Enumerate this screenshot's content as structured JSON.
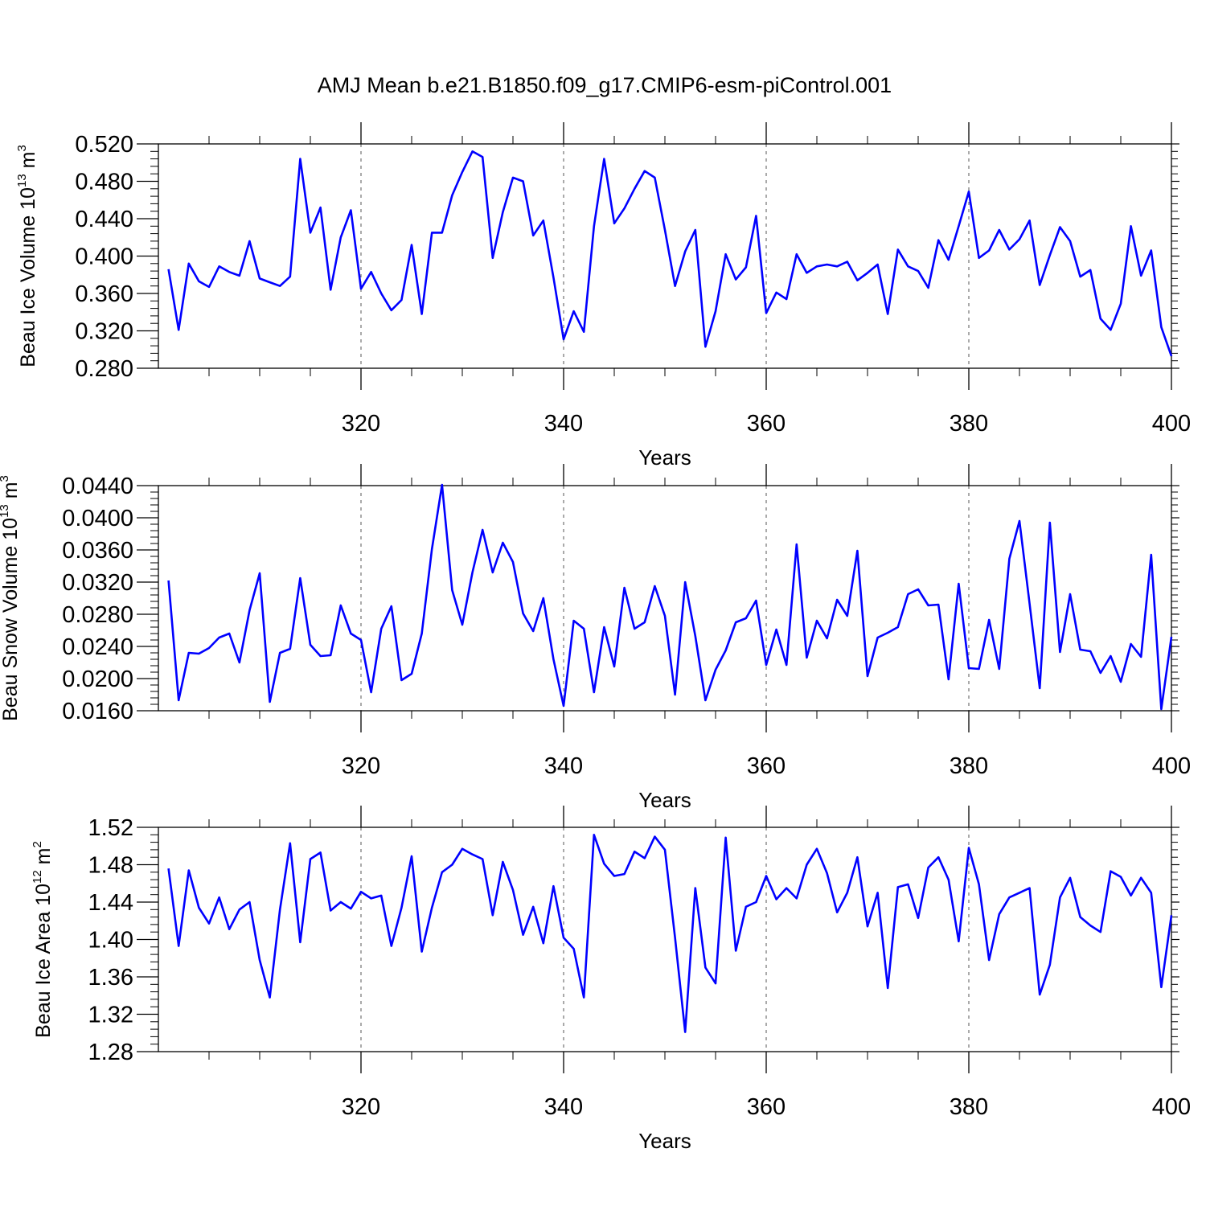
{
  "title": "AMJ Mean b.e21.B1850.f09_g17.CMIP6-esm-piControl.001",
  "colors": {
    "line": "#0000ff",
    "axis": "#000000",
    "grid": "#555555"
  },
  "chart_data": [
    {
      "type": "line",
      "name": "ice-volume",
      "ylabel": {
        "text": "Beau Ice Volume 10",
        "exponent": "13",
        "unit": " m",
        "unit_exponent": "3"
      },
      "xlabel": "Years",
      "xlim": [
        300,
        400
      ],
      "ylim": [
        0.28,
        0.52
      ],
      "yticks": [
        "0.280",
        "0.320",
        "0.360",
        "0.400",
        "0.440",
        "0.480",
        "0.520"
      ],
      "xticks": [
        "320",
        "340",
        "360",
        "380",
        "400"
      ],
      "x_start": 300,
      "x_step": 1,
      "values": [
        0.386,
        0.321,
        0.392,
        0.373,
        0.367,
        0.389,
        0.383,
        0.379,
        0.416,
        0.376,
        0.372,
        0.368,
        0.378,
        0.504,
        0.425,
        0.452,
        0.364,
        0.42,
        0.449,
        0.365,
        0.383,
        0.36,
        0.342,
        0.353,
        0.412,
        0.338,
        0.425,
        0.425,
        0.465,
        0.49,
        0.512,
        0.506,
        0.398,
        0.447,
        0.484,
        0.48,
        0.422,
        0.438,
        0.377,
        0.311,
        0.341,
        0.319,
        0.432,
        0.504,
        0.435,
        0.451,
        0.472,
        0.491,
        0.484,
        0.428,
        0.368,
        0.405,
        0.428,
        0.303,
        0.341,
        0.402,
        0.375,
        0.388,
        0.443,
        0.339,
        0.361,
        0.354,
        0.402,
        0.382,
        0.389,
        0.391,
        0.389,
        0.394,
        0.374,
        0.382,
        0.391,
        0.338,
        0.407,
        0.389,
        0.384,
        0.366,
        0.417,
        0.396,
        0.432,
        0.469,
        0.398,
        0.406,
        0.428,
        0.407,
        0.418,
        0.438,
        0.369,
        0.401,
        0.431,
        0.416,
        0.378,
        0.385,
        0.333,
        0.321,
        0.349,
        0.432,
        0.379,
        0.406,
        0.324,
        0.293
      ]
    },
    {
      "type": "line",
      "name": "snow-volume",
      "ylabel": {
        "text": "Beau Snow Volume 10",
        "exponent": "13",
        "unit": " m",
        "unit_exponent": "3"
      },
      "xlabel": "Years",
      "xlim": [
        300,
        400
      ],
      "ylim": [
        0.016,
        0.044
      ],
      "yticks": [
        "0.0160",
        "0.0200",
        "0.0240",
        "0.0280",
        "0.0320",
        "0.0360",
        "0.0400",
        "0.0440"
      ],
      "xticks": [
        "320",
        "340",
        "360",
        "380",
        "400"
      ],
      "x_start": 300,
      "x_step": 1,
      "values": [
        0.0322,
        0.0173,
        0.0232,
        0.0231,
        0.0238,
        0.0251,
        0.0256,
        0.022,
        0.0285,
        0.0331,
        0.0171,
        0.0232,
        0.0237,
        0.0325,
        0.0242,
        0.0228,
        0.0229,
        0.0291,
        0.0256,
        0.0248,
        0.0183,
        0.0262,
        0.029,
        0.0198,
        0.0206,
        0.0256,
        0.0361,
        0.0441,
        0.031,
        0.0267,
        0.0332,
        0.0385,
        0.0332,
        0.0369,
        0.0345,
        0.0281,
        0.0259,
        0.03,
        0.0224,
        0.0166,
        0.0272,
        0.0262,
        0.0183,
        0.0264,
        0.0215,
        0.0313,
        0.0262,
        0.027,
        0.0315,
        0.0278,
        0.018,
        0.032,
        0.0253,
        0.0173,
        0.0211,
        0.0235,
        0.027,
        0.0275,
        0.0297,
        0.0217,
        0.0261,
        0.0217,
        0.0367,
        0.0226,
        0.0272,
        0.025,
        0.0298,
        0.0278,
        0.0359,
        0.0203,
        0.0251,
        0.0257,
        0.0264,
        0.0305,
        0.0311,
        0.0291,
        0.0292,
        0.0199,
        0.0318,
        0.0213,
        0.0212,
        0.0273,
        0.0212,
        0.0349,
        0.0396,
        0.0293,
        0.0188,
        0.0394,
        0.0233,
        0.0305,
        0.0236,
        0.0234,
        0.0207,
        0.0228,
        0.0196,
        0.0243,
        0.0227,
        0.0354,
        0.0162,
        0.0252
      ]
    },
    {
      "type": "line",
      "name": "ice-area",
      "ylabel": {
        "text": "Beau Ice Area 10",
        "exponent": "12",
        "unit": " m",
        "unit_exponent": "2"
      },
      "xlabel": "Years",
      "xlim": [
        300,
        400
      ],
      "ylim": [
        1.28,
        1.52
      ],
      "yticks": [
        "1.28",
        "1.32",
        "1.36",
        "1.40",
        "1.44",
        "1.48",
        "1.52"
      ],
      "xticks": [
        "320",
        "340",
        "360",
        "380",
        "400"
      ],
      "x_start": 300,
      "x_step": 1,
      "values": [
        1.476,
        1.393,
        1.474,
        1.434,
        1.417,
        1.445,
        1.411,
        1.432,
        1.44,
        1.378,
        1.338,
        1.432,
        1.503,
        1.397,
        1.486,
        1.493,
        1.431,
        1.44,
        1.433,
        1.451,
        1.444,
        1.447,
        1.393,
        1.434,
        1.489,
        1.387,
        1.434,
        1.472,
        1.48,
        1.497,
        1.491,
        1.486,
        1.426,
        1.483,
        1.453,
        1.405,
        1.435,
        1.396,
        1.457,
        1.402,
        1.39,
        1.338,
        1.512,
        1.481,
        1.468,
        1.47,
        1.494,
        1.487,
        1.51,
        1.496,
        1.402,
        1.301,
        1.455,
        1.37,
        1.353,
        1.509,
        1.388,
        1.435,
        1.44,
        1.468,
        1.443,
        1.455,
        1.444,
        1.48,
        1.497,
        1.471,
        1.429,
        1.45,
        1.488,
        1.414,
        1.45,
        1.348,
        1.456,
        1.459,
        1.423,
        1.477,
        1.488,
        1.464,
        1.398,
        1.498,
        1.459,
        1.378,
        1.427,
        1.445,
        1.45,
        1.455,
        1.341,
        1.373,
        1.445,
        1.466,
        1.424,
        1.415,
        1.408,
        1.473,
        1.467,
        1.447,
        1.466,
        1.45,
        1.349,
        1.426
      ]
    }
  ]
}
